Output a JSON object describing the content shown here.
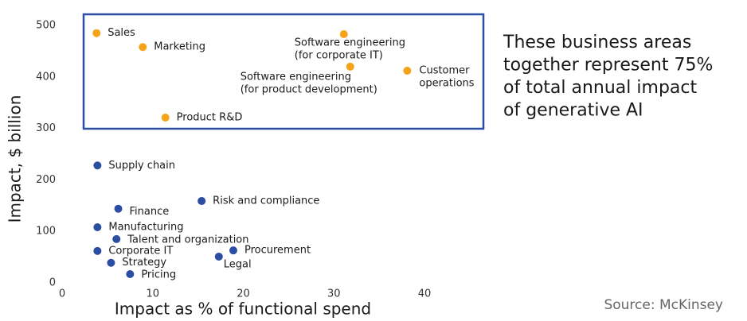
{
  "chart_data": {
    "type": "scatter",
    "xlabel": "Impact as % of functional spend",
    "ylabel": "Impact, $ billion",
    "xlim": [
      0,
      40
    ],
    "xticks": [
      0,
      10,
      20,
      30,
      40
    ],
    "ylim": [
      0,
      500
    ],
    "yticks": [
      0,
      100,
      200,
      300,
      400,
      500
    ],
    "series": [
      {
        "color": "#f5a31a",
        "x": [
          3.8,
          8.9,
          11.4,
          31.1,
          31.8,
          38.1
        ],
        "y": [
          485,
          458,
          321,
          483,
          420,
          412
        ],
        "labels": [
          [
            "Sales"
          ],
          [
            "Marketing"
          ],
          [
            "Product R&D"
          ],
          [
            "Software engineering",
            "(for corporate IT)"
          ],
          [
            "Software engineering",
            "(for product development)"
          ],
          [
            "Customer",
            "operations"
          ]
        ]
      },
      {
        "color": "#2b4ea2",
        "x": [
          3.9,
          6.2,
          15.4,
          3.9,
          6.0,
          3.9,
          5.4,
          7.5,
          18.9,
          17.3
        ],
        "y": [
          228,
          144,
          159,
          108,
          85,
          62,
          39,
          17,
          63,
          51
        ],
        "labels": [
          [
            "Supply chain"
          ],
          [
            "Finance"
          ],
          [
            "Risk and compliance"
          ],
          [
            "Manufacturing"
          ],
          [
            "Talent and organization"
          ],
          [
            "Corporate IT"
          ],
          [
            "Strategy"
          ],
          [
            "Pricing"
          ],
          [
            "Procurement"
          ],
          [
            "Legal"
          ]
        ]
      }
    ]
  },
  "annotation": [
    "These business areas",
    "together represent 75%",
    "of total annual impact",
    "of generative AI"
  ],
  "source": "Source: McKinsey"
}
